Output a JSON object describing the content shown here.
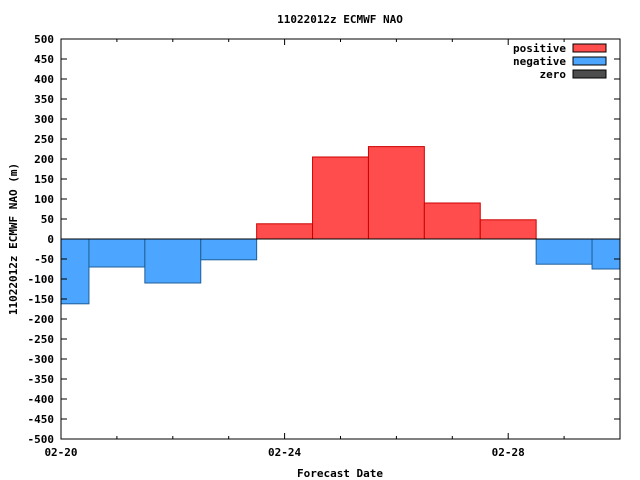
{
  "chart_data": {
    "type": "bar",
    "title": "11022012z ECMWF NAO",
    "xlabel": "Forecast Date",
    "ylabel": "11022012z ECMWF NAO (m)",
    "ylim": [
      -500,
      500
    ],
    "y_ticks": [
      500,
      450,
      400,
      350,
      300,
      250,
      200,
      150,
      100,
      50,
      0,
      -50,
      -100,
      -150,
      -200,
      -250,
      -300,
      -350,
      -400,
      -450,
      -500
    ],
    "x_tick_labels": [
      "02-20",
      "02-24",
      "02-28"
    ],
    "x_range_days": [
      0,
      10
    ],
    "x_tick_days": [
      0,
      4,
      8
    ],
    "x_minor_tick_days": [
      1,
      2,
      3,
      5,
      6,
      7,
      9
    ],
    "grid": false,
    "legend_position": "top-right",
    "series_colors": {
      "positive": "#ff4c4c",
      "negative": "#4ca6ff",
      "zero": "#4d4d4d"
    },
    "legend": [
      {
        "label": "positive",
        "key": "positive"
      },
      {
        "label": "negative",
        "key": "negative"
      },
      {
        "label": "zero",
        "key": "zero"
      }
    ],
    "bars": [
      {
        "x": "02-20",
        "value": -162
      },
      {
        "x": "02-21",
        "value": -70
      },
      {
        "x": "02-22",
        "value": -110
      },
      {
        "x": "02-23",
        "value": -52
      },
      {
        "x": "02-24",
        "value": 38
      },
      {
        "x": "02-25",
        "value": 205
      },
      {
        "x": "02-26",
        "value": 231
      },
      {
        "x": "02-27",
        "value": 90
      },
      {
        "x": "02-28",
        "value": 48
      },
      {
        "x": "02-29",
        "value": -63
      },
      {
        "x": "03-01",
        "value": -75
      }
    ]
  }
}
